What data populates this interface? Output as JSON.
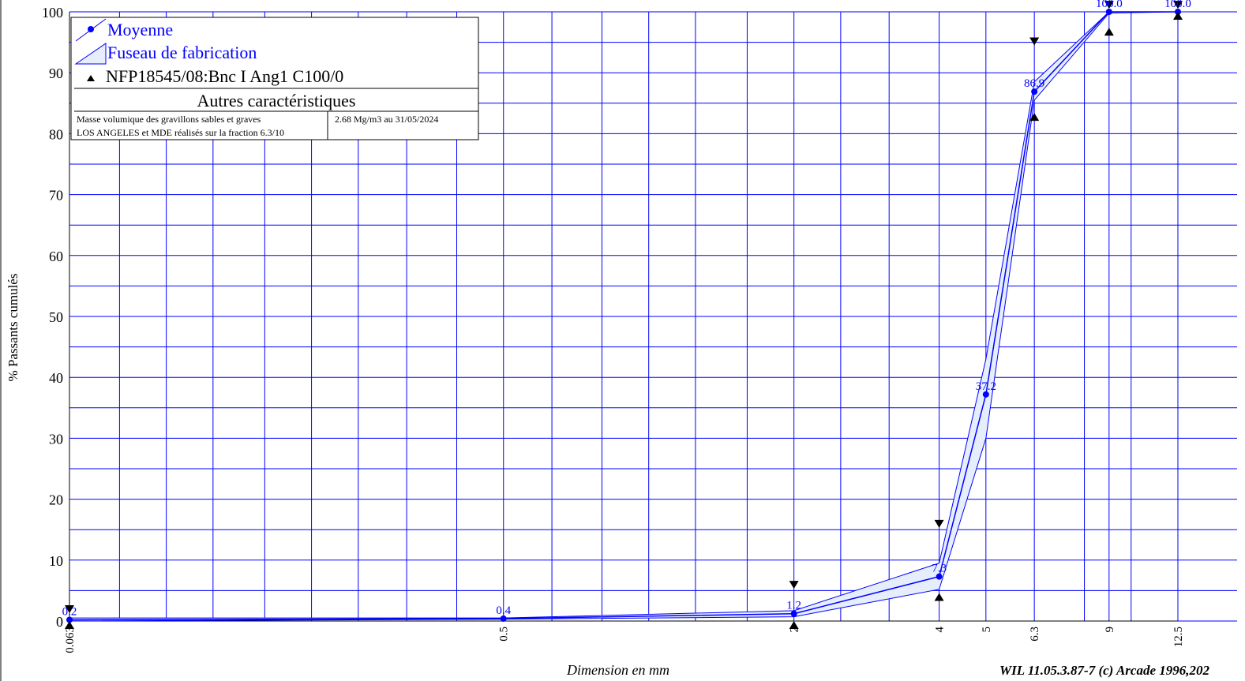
{
  "chart_data": {
    "type": "line",
    "xlabel": "Dimension en mm",
    "ylabel": "% Passants cumulés",
    "x_scale": "log",
    "x_ticks": [
      "0.063",
      "0.5",
      "2",
      "4",
      "5",
      "6.3",
      "9",
      "12.5"
    ],
    "y_ticks": [
      "0",
      "10",
      "20",
      "30",
      "40",
      "50",
      "60",
      "70",
      "80",
      "90",
      "100"
    ],
    "ylim": [
      0,
      100
    ],
    "grid": true,
    "legend_position": "top-left",
    "series": [
      {
        "name": "Moyenne",
        "x": [
          0.063,
          0.5,
          2,
          4,
          5,
          6.3,
          9,
          12.5
        ],
        "values": [
          0.2,
          0.4,
          1.2,
          7.3,
          37.2,
          86.9,
          100.0,
          100.0
        ],
        "labels": [
          "0.2",
          "0.4",
          "1.2",
          "7.3",
          "37.2",
          "86.9",
          "100.0",
          "100.0"
        ],
        "color": "#0000ff"
      },
      {
        "name": "Fuseau de fabrication",
        "x": [
          0.063,
          0.5,
          2,
          4,
          5,
          6.3,
          9,
          12.5
        ],
        "upper": [
          0.5,
          0.5,
          1.7,
          9.5,
          43.0,
          88.5,
          100.0,
          100.0
        ],
        "lower": [
          0.0,
          0.3,
          0.7,
          5.2,
          30.0,
          85.5,
          99.8,
          100.0
        ],
        "color": "#0000ff",
        "fill": "#e6eefc"
      },
      {
        "name": "NFP18545/08:Bnc I Ang1 C100/0",
        "x": [
          0.063,
          2,
          4,
          6.3,
          9,
          12.5
        ],
        "upper": [
          1.3,
          5.3,
          15.3,
          94.5,
          100.5,
          100.5
        ],
        "lower": [
          0.0,
          0.0,
          4.6,
          83.4,
          97.4,
          100.0
        ],
        "color": "#000000"
      }
    ]
  },
  "legend": {
    "entries": [
      "Moyenne",
      "Fuseau de fabrication",
      "NFP18545/08:Bnc I Ang1 C100/0"
    ]
  },
  "characteristics": {
    "title": "Autres caractéristiques",
    "row1_label": "Masse volumique des gravillons sables et graves",
    "row1_value": "2.68 Mg/m3  au 31/05/2024",
    "row2_label": "LOS ANGELES et MDE réalisés sur la fraction 6.3/10",
    "row2_value": ""
  },
  "footer": {
    "credit": "WIL 11.05.3.87-7 (c) Arcade 1996,202"
  },
  "colors": {
    "grid": "#0000ff",
    "curve": "#0000ff",
    "band_fill": "#e6eefc",
    "spec_markers": "#000000"
  }
}
